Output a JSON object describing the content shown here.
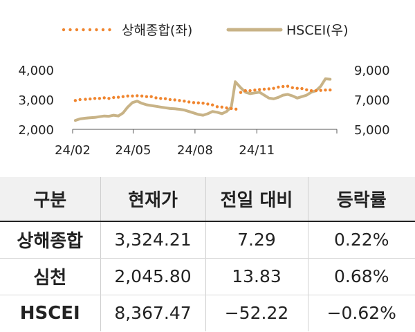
{
  "chart_data": {
    "type": "line",
    "legend": {
      "placement": "top"
    },
    "x_ticks": [
      "24/02",
      "24/05",
      "24/08",
      "24/11"
    ],
    "left_axis": {
      "ylim": [
        2000,
        4000
      ],
      "ticks": [
        "2,000",
        "3,000",
        "4,000"
      ]
    },
    "right_axis": {
      "ylim": [
        5000,
        9000
      ],
      "ticks": [
        "5,000",
        "7,000",
        "9,000"
      ]
    },
    "series": [
      {
        "name": "상해종합(좌)",
        "axis": "left",
        "style": "dotted",
        "color": "#f0852e",
        "x": [
          "2024-02-05",
          "2024-02-12",
          "2024-02-20",
          "2024-02-27",
          "2024-03-05",
          "2024-03-12",
          "2024-03-19",
          "2024-03-26",
          "2024-04-02",
          "2024-04-09",
          "2024-04-16",
          "2024-04-23",
          "2024-04-30",
          "2024-05-07",
          "2024-05-14",
          "2024-05-21",
          "2024-05-28",
          "2024-06-04",
          "2024-06-11",
          "2024-06-18",
          "2024-06-25",
          "2024-07-02",
          "2024-07-09",
          "2024-07-16",
          "2024-07-23",
          "2024-07-30",
          "2024-08-06",
          "2024-08-13",
          "2024-08-20",
          "2024-08-27",
          "2024-09-03",
          "2024-09-10",
          "2024-09-17",
          "2024-09-24",
          "2024-10-01",
          "2024-10-08",
          "2024-10-15",
          "2024-10-22",
          "2024-10-29",
          "2024-11-05",
          "2024-11-12",
          "2024-11-19",
          "2024-11-26",
          "2024-12-03",
          "2024-12-10",
          "2024-12-17",
          "2024-12-24",
          "2024-12-31",
          "2025-01-07",
          "2025-01-14",
          "2025-01-21",
          "2025-01-28",
          "2025-02-04",
          "2025-02-11",
          "2025-02-18"
        ],
        "values": [
          2970,
          3000,
          3010,
          3020,
          3040,
          3040,
          3060,
          3040,
          3070,
          3080,
          3100,
          3120,
          3120,
          3130,
          3120,
          3100,
          3100,
          3060,
          3040,
          3030,
          3000,
          2990,
          2970,
          2950,
          2920,
          2900,
          2890,
          2880,
          2850,
          2820,
          2760,
          2750,
          2720,
          2700,
          2680,
          3240,
          3300,
          3300,
          3320,
          3340,
          3350,
          3360,
          3380,
          3420,
          3440,
          3450,
          3400,
          3380,
          3370,
          3330,
          3300,
          3300,
          3310,
          3320,
          3324.21
        ]
      },
      {
        "name": "HSCEI(우)",
        "axis": "right",
        "style": "solid",
        "color": "#c8b387",
        "x": [
          "2024-02-05",
          "2024-02-12",
          "2024-02-20",
          "2024-02-27",
          "2024-03-05",
          "2024-03-12",
          "2024-03-19",
          "2024-03-26",
          "2024-04-02",
          "2024-04-09",
          "2024-04-16",
          "2024-04-23",
          "2024-04-30",
          "2024-05-07",
          "2024-05-14",
          "2024-05-21",
          "2024-05-28",
          "2024-06-04",
          "2024-06-11",
          "2024-06-18",
          "2024-06-25",
          "2024-07-02",
          "2024-07-09",
          "2024-07-16",
          "2024-07-23",
          "2024-07-30",
          "2024-08-06",
          "2024-08-13",
          "2024-08-20",
          "2024-08-27",
          "2024-09-03",
          "2024-09-10",
          "2024-09-17",
          "2024-09-24",
          "2024-09-30",
          "2024-10-08",
          "2024-10-15",
          "2024-10-22",
          "2024-10-29",
          "2024-11-05",
          "2024-11-12",
          "2024-11-19",
          "2024-11-26",
          "2024-12-03",
          "2024-12-10",
          "2024-12-17",
          "2024-12-24",
          "2024-12-31",
          "2025-01-07",
          "2025-01-14",
          "2025-01-21",
          "2025-01-28",
          "2025-02-04",
          "2025-02-11",
          "2025-02-18"
        ],
        "values": [
          5600,
          5700,
          5750,
          5780,
          5800,
          5850,
          5900,
          5880,
          5950,
          5900,
          6100,
          6500,
          6800,
          6900,
          6750,
          6650,
          6600,
          6550,
          6500,
          6450,
          6400,
          6380,
          6350,
          6300,
          6200,
          6100,
          6000,
          5950,
          6050,
          6200,
          6150,
          6050,
          6200,
          6500,
          8200,
          7800,
          7500,
          7400,
          7450,
          7500,
          7300,
          7100,
          7050,
          7150,
          7300,
          7350,
          7250,
          7100,
          7200,
          7300,
          7500,
          7600,
          7900,
          8400,
          8367.47
        ]
      }
    ]
  },
  "table": {
    "headers": [
      "구분",
      "현재가",
      "전일 대비",
      "등락률"
    ],
    "rows": [
      {
        "name": "상해종합",
        "price": "3,324.21",
        "change": "7.29",
        "rate": "0.22%"
      },
      {
        "name": "심천",
        "price": "2,045.80",
        "change": "13.83",
        "rate": "0.68%"
      },
      {
        "name": "HSCEI",
        "price": "8,367.47",
        "change": "−52.22",
        "rate": "−0.62%"
      }
    ]
  }
}
